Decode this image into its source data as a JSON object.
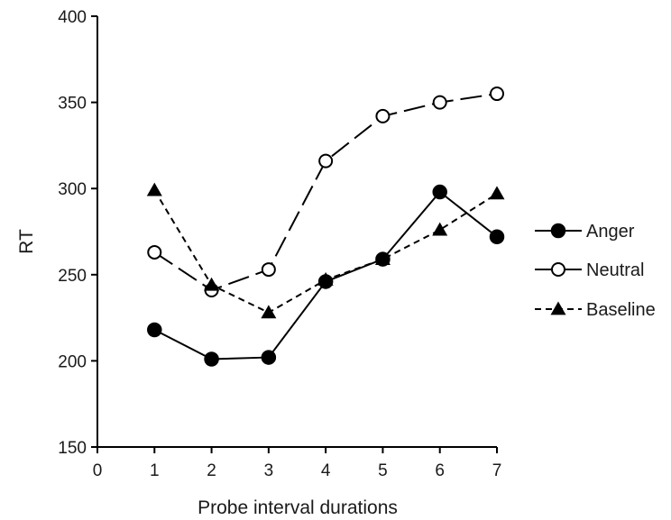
{
  "chart_data": {
    "type": "line",
    "xlabel": "Probe interval durations",
    "ylabel": "RT",
    "xlim": [
      0,
      7
    ],
    "ylim": [
      150,
      400
    ],
    "x_ticks": [
      "0",
      "1",
      "2",
      "3",
      "4",
      "5",
      "6",
      "7"
    ],
    "y_ticks": [
      "150",
      "200",
      "250",
      "300",
      "350",
      "400"
    ],
    "x": [
      1,
      2,
      3,
      4,
      5,
      6,
      7
    ],
    "grid": false,
    "legend_position": "right",
    "series": [
      {
        "name": "Anger",
        "marker": "filled-circle",
        "line": "solid",
        "values": [
          218,
          201,
          202,
          246,
          259,
          298,
          272
        ]
      },
      {
        "name": "Neutral",
        "marker": "open-circle",
        "line": "long-dash",
        "values": [
          263,
          241,
          253,
          316,
          342,
          350,
          355
        ]
      },
      {
        "name": "Baseline",
        "marker": "filled-triangle",
        "line": "short-dash",
        "values": [
          299,
          244,
          228,
          247,
          259,
          276,
          297
        ]
      }
    ]
  }
}
